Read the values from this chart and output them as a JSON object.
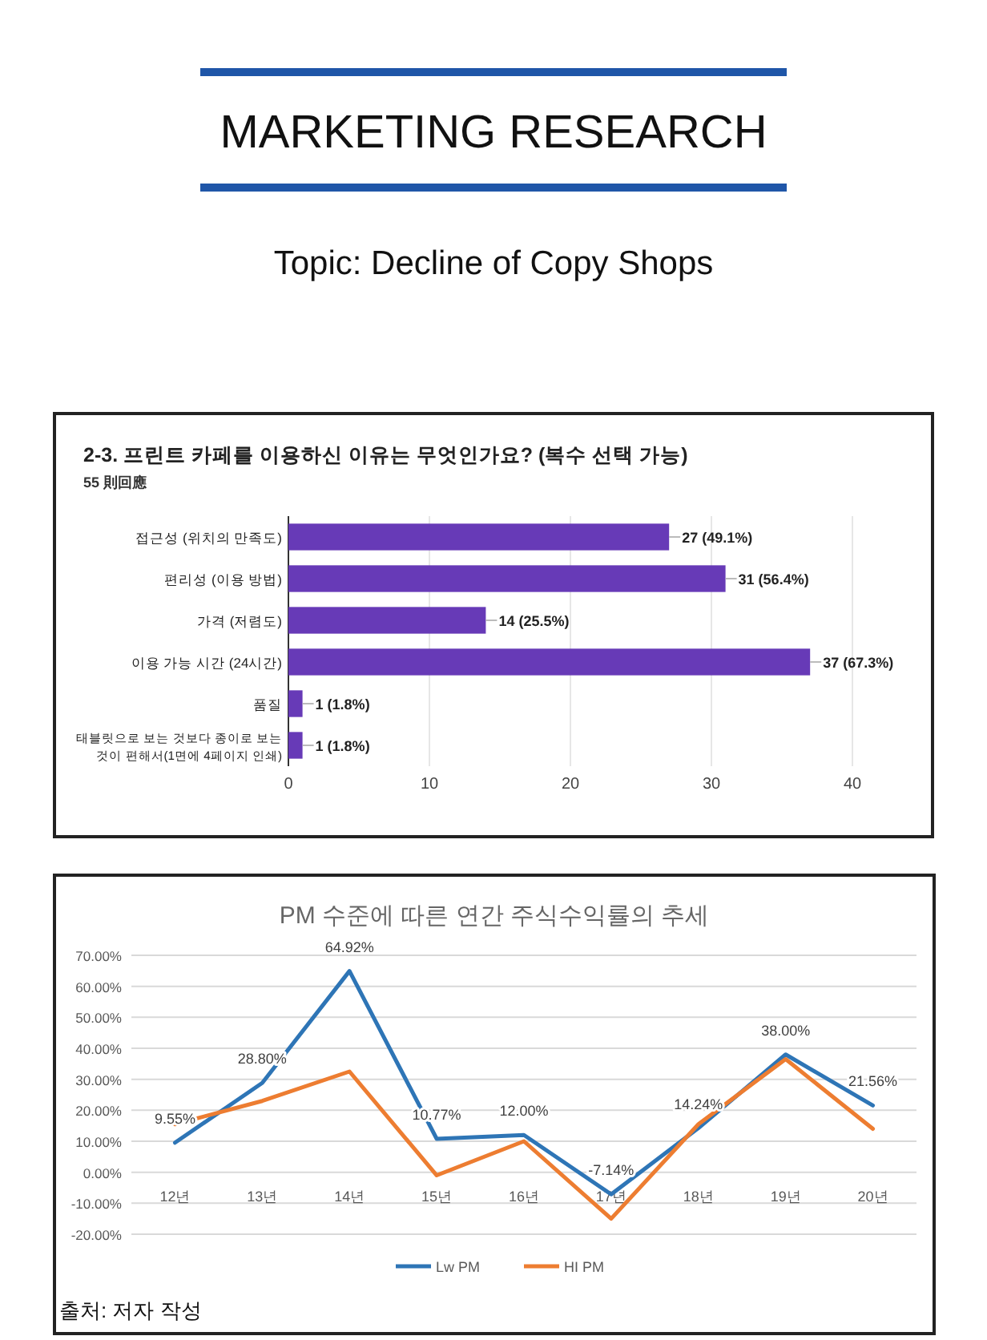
{
  "chart_data": [
    {
      "type": "bar",
      "orientation": "horizontal",
      "title": "2-3. 프린트 카페를 이용하신 이유는 무엇인가요? (복수 선택 가능)",
      "subtitle": "55 則回應",
      "annotations": [
        "MARKETING RESEARCH",
        "Topic: Decline of Copy Shops"
      ],
      "categories": [
        "접근성 (위치의 만족도)",
        "편리성 (이용 방법)",
        "가격 (저렴도)",
        "이용 가능 시간 (24시간)",
        "품질",
        "태블릿으로 보는 것보다 종이로 보는 것이 편해서(1면에 4페이지 인쇄)"
      ],
      "values": [
        27,
        31,
        14,
        37,
        1,
        1
      ],
      "value_labels": [
        "27 (49.1%)",
        "31 (56.4%)",
        "14 (25.5%)",
        "37 (67.3%)",
        "1 (1.8%)",
        "1 (1.8%)"
      ],
      "color": "#673ab7",
      "xlim": [
        0,
        40
      ],
      "xticks": [
        0,
        10,
        20,
        30,
        40
      ],
      "grid": "x"
    },
    {
      "type": "line",
      "title": "PM 수준에 따른 연간 주식수익률의 추세",
      "annotations": [
        "출처: 저자 작성"
      ],
      "categories": [
        "12년",
        "13년",
        "14년",
        "15년",
        "16년",
        "17년",
        "18년",
        "19년",
        "20년"
      ],
      "series": [
        {
          "name": "Lw PM",
          "color": "#2e75b6",
          "values": [
            9.55,
            28.8,
            64.92,
            10.77,
            12.0,
            -7.14,
            14.24,
            38.0,
            21.56
          ],
          "value_labels": [
            "9.55%",
            "28.80%",
            "64.92%",
            "10.77%",
            "12.00%",
            "-7.14%",
            "14.24%",
            "38.00%",
            "21.56%"
          ]
        },
        {
          "name": "HI PM",
          "color": "#ed7d31",
          "values": [
            15.5,
            23,
            32.5,
            -1,
            10,
            -15,
            15.5,
            36.5,
            14
          ]
        }
      ],
      "ylim": [
        -20,
        70
      ],
      "yticks": [
        {
          "value": -20,
          "label": "-20.00%"
        },
        {
          "value": -10,
          "label": "-10.00%"
        },
        {
          "value": 0,
          "label": "0.00%"
        },
        {
          "value": 10,
          "label": "10.00%"
        },
        {
          "value": 20,
          "label": "20.00%"
        },
        {
          "value": 30,
          "label": "30.00%"
        },
        {
          "value": 40,
          "label": "40.00%"
        },
        {
          "value": 50,
          "label": "50.00%"
        },
        {
          "value": 60,
          "label": "60.00%"
        },
        {
          "value": 70,
          "label": "70.00%"
        }
      ],
      "grid": "y",
      "legend": "bottom",
      "marker": "none",
      "line_style": "solid"
    }
  ]
}
